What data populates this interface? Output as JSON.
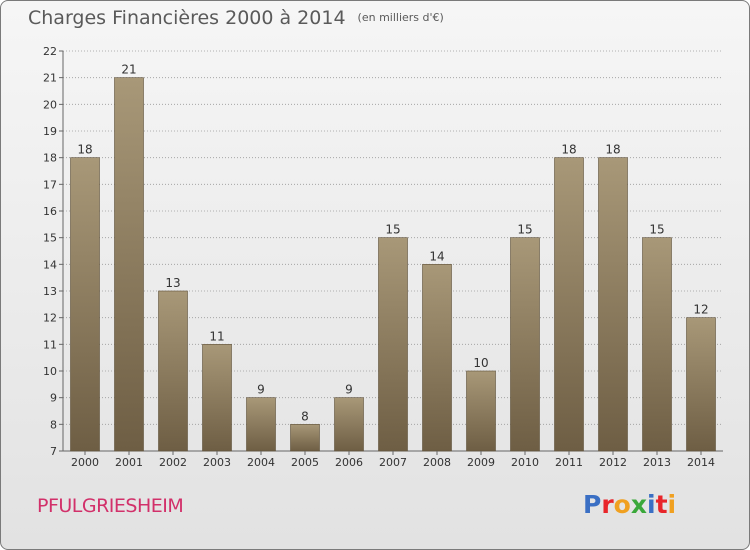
{
  "title": "Charges Financières 2000 à 2014",
  "subtitle": "(en milliers d'€)",
  "commune": "PFULGRIESHEIM",
  "logo": {
    "text": "Proxiti",
    "colors": [
      "#3a6fc4",
      "#e8252a",
      "#f0a020",
      "#3aa83a",
      "#3a6fc4",
      "#e8252a",
      "#f0a020"
    ]
  },
  "colors": {
    "bar_light": "#a89878",
    "bar_dark": "#6e5e44",
    "grid": "#9a9a9a",
    "text": "#333333"
  },
  "chart_data": {
    "type": "bar",
    "title": "Charges Financières 2000 à 2014",
    "subtitle": "(en milliers d'€)",
    "categories": [
      "2000",
      "2001",
      "2002",
      "2003",
      "2004",
      "2005",
      "2006",
      "2007",
      "2008",
      "2009",
      "2010",
      "2011",
      "2012",
      "2013",
      "2014"
    ],
    "values": [
      18,
      21,
      13,
      11,
      9,
      8,
      9,
      15,
      14,
      10,
      15,
      18,
      18,
      15,
      12
    ],
    "ylim": [
      7,
      22
    ],
    "yticks": [
      7,
      8,
      9,
      10,
      11,
      12,
      13,
      14,
      15,
      16,
      17,
      18,
      19,
      20,
      21,
      22
    ],
    "grid": "horizontal dotted",
    "xlabel": "",
    "ylabel": ""
  }
}
